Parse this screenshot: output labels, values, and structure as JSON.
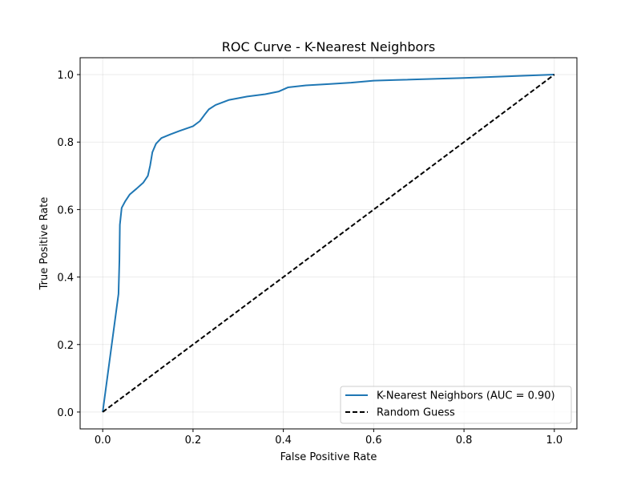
{
  "chart_data": {
    "type": "line",
    "title": "ROC Curve - K-Nearest Neighbors",
    "xlabel": "False Positive Rate",
    "ylabel": "True Positive Rate",
    "xlim": [
      -0.05,
      1.05
    ],
    "ylim": [
      -0.05,
      1.05
    ],
    "xticks": [
      0.0,
      0.2,
      0.4,
      0.6,
      0.8,
      1.0
    ],
    "yticks": [
      0.0,
      0.2,
      0.4,
      0.6,
      0.8,
      1.0
    ],
    "xtick_labels": [
      "0.0",
      "0.2",
      "0.4",
      "0.6",
      "0.8",
      "1.0"
    ],
    "ytick_labels": [
      "0.0",
      "0.2",
      "0.4",
      "0.6",
      "0.8",
      "1.0"
    ],
    "grid": true,
    "legend_position": "lower-right",
    "series": [
      {
        "name": "K-Nearest Neighbors (AUC = 0.90)",
        "color": "#1f77b4",
        "style": "solid",
        "points": [
          [
            0.0,
            0.0
          ],
          [
            0.035,
            0.35
          ],
          [
            0.037,
            0.45
          ],
          [
            0.038,
            0.555
          ],
          [
            0.042,
            0.605
          ],
          [
            0.05,
            0.625
          ],
          [
            0.06,
            0.645
          ],
          [
            0.075,
            0.662
          ],
          [
            0.09,
            0.68
          ],
          [
            0.1,
            0.7
          ],
          [
            0.105,
            0.73
          ],
          [
            0.11,
            0.77
          ],
          [
            0.118,
            0.795
          ],
          [
            0.13,
            0.812
          ],
          [
            0.15,
            0.823
          ],
          [
            0.17,
            0.833
          ],
          [
            0.2,
            0.847
          ],
          [
            0.215,
            0.862
          ],
          [
            0.225,
            0.88
          ],
          [
            0.235,
            0.897
          ],
          [
            0.25,
            0.91
          ],
          [
            0.28,
            0.925
          ],
          [
            0.32,
            0.935
          ],
          [
            0.36,
            0.942
          ],
          [
            0.39,
            0.95
          ],
          [
            0.41,
            0.962
          ],
          [
            0.45,
            0.968
          ],
          [
            0.5,
            0.972
          ],
          [
            0.55,
            0.976
          ],
          [
            0.6,
            0.982
          ],
          [
            0.65,
            0.984
          ],
          [
            0.8,
            0.99
          ],
          [
            0.9,
            0.995
          ],
          [
            1.0,
            1.0
          ]
        ]
      },
      {
        "name": "Random Guess",
        "color": "#000000",
        "style": "dashed",
        "points": [
          [
            0.0,
            0.0
          ],
          [
            1.0,
            1.0
          ]
        ]
      }
    ]
  }
}
